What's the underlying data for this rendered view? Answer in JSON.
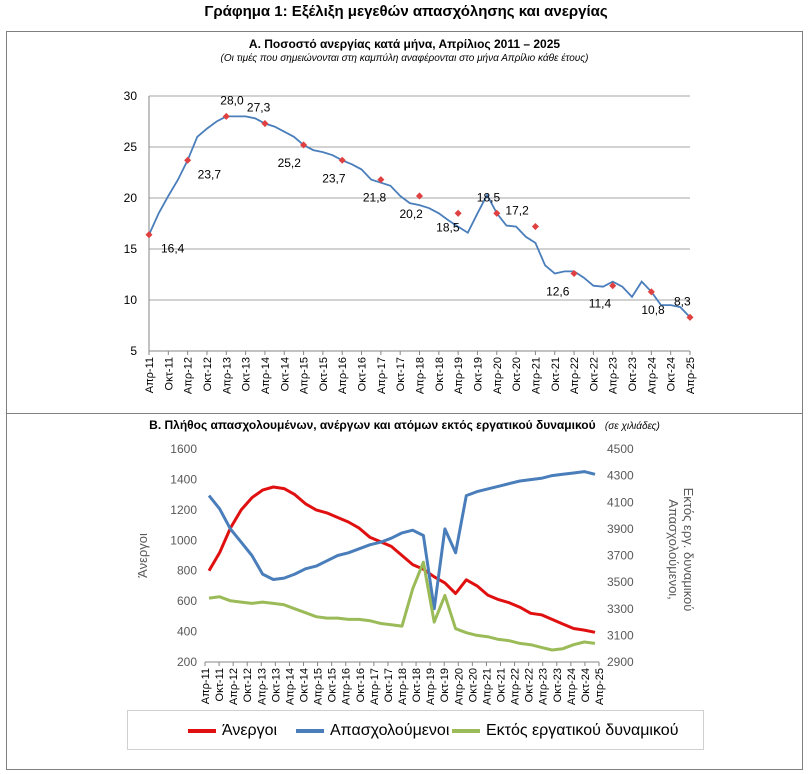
{
  "figure_title": "Γράφημα 1: Εξέλιξη μεγεθών απασχόλησης και ανεργίας",
  "chart_data": [
    {
      "type": "line",
      "title": "Α. Ποσοστό ανεργίας κατά μήνα, Απρίλιος 2011 – 2025",
      "subtitle": "(Οι τιμές που σημειώνονται στη καμπύλη αναφέρονται στο μήνα Απρίλιο κάθε έτους)",
      "xlabel": "",
      "ylabel": "",
      "ylim": [
        5,
        30
      ],
      "yticks": [
        5,
        10,
        15,
        20,
        25,
        30
      ],
      "grid": true,
      "x_labels": [
        "Απρ-11",
        "Οκτ-11",
        "Απρ-12",
        "Οκτ-12",
        "Απρ-13",
        "Οκτ-13",
        "Απρ-14",
        "Οκτ-14",
        "Απρ-15",
        "Οκτ-15",
        "Απρ-16",
        "Οκτ-16",
        "Απρ-17",
        "Οκτ-17",
        "Απρ-18",
        "Οκτ-18",
        "Απρ-19",
        "Οκτ-19",
        "Απρ-20",
        "Οκτ-20",
        "Απρ-21",
        "Οκτ-21",
        "Απρ-22",
        "Οκτ-22",
        "Απρ-23",
        "Οκτ-23",
        "Απρ-24",
        "Οκτ-24",
        "Απρ-25"
      ],
      "series": [
        {
          "color": "#4a7ebb",
          "values": [
            16.4,
            18.5,
            20.2,
            21.8,
            23.7,
            26.0,
            26.8,
            27.5,
            28.0,
            28.0,
            28.0,
            27.8,
            27.3,
            27.0,
            26.5,
            26.0,
            25.2,
            24.7,
            24.5,
            24.2,
            23.7,
            23.3,
            22.8,
            21.8,
            21.5,
            21.2,
            20.2,
            19.5,
            19.3,
            19.0,
            18.5,
            17.8,
            17.2,
            16.6,
            18.5,
            20.3,
            18.5,
            17.3,
            17.2,
            16.2,
            15.6,
            13.4,
            12.6,
            12.8,
            12.8,
            12.2,
            11.4,
            11.3,
            11.8,
            11.3,
            10.3,
            11.8,
            10.8,
            9.5,
            9.5,
            9.3,
            8.3
          ]
        }
      ],
      "april_markers": [
        {
          "label": "Απρ-11",
          "value": 16.4,
          "text": "16,4"
        },
        {
          "label": "Απρ-12",
          "value": 23.7,
          "text": "23,7"
        },
        {
          "label": "Απρ-13",
          "value": 28.0,
          "text": "28,0"
        },
        {
          "label": "Απρ-14",
          "value": 27.3,
          "text": "27,3"
        },
        {
          "label": "Απρ-15",
          "value": 25.2,
          "text": "25,2"
        },
        {
          "label": "Απρ-16",
          "value": 23.7,
          "text": "23,7"
        },
        {
          "label": "Απρ-17",
          "value": 21.8,
          "text": "21,8"
        },
        {
          "label": "Απρ-18",
          "value": 20.2,
          "text": "20,2"
        },
        {
          "label": "Απρ-19",
          "value": 18.5,
          "text": "18,5"
        },
        {
          "label": "Απρ-20",
          "value": 18.5,
          "text": "18,5"
        },
        {
          "label": "Απρ-21",
          "value": 17.2,
          "text": "17,2"
        },
        {
          "label": "Απρ-22",
          "value": 12.6,
          "text": "12,6"
        },
        {
          "label": "Απρ-23",
          "value": 11.4,
          "text": "11,4"
        },
        {
          "label": "Απρ-24",
          "value": 10.8,
          "text": "10,8"
        },
        {
          "label": "Απρ-25",
          "value": 8.3,
          "text": "8,3"
        }
      ],
      "marker_color": "#e04040"
    },
    {
      "type": "line",
      "title": "Β. Πλήθος απασχολουμένων, ανέργων και ατόμων εκτός εργατικού δυναμικού",
      "title_note": "(σε χιλιάδες)",
      "ylabel": "Άνεργοι",
      "ylabel_right": "Απασχολούμενοι, Εκτός εργ. δυναμικού",
      "ylim": [
        200,
        1600
      ],
      "yticks": [
        200,
        400,
        600,
        800,
        1000,
        1200,
        1400,
        1600
      ],
      "ylim_right": [
        2900,
        4500
      ],
      "yticks_right": [
        2900,
        3100,
        3300,
        3500,
        3700,
        3900,
        4100,
        4300,
        4500
      ],
      "legend_position": "bottom",
      "x_labels": [
        "Απρ-11",
        "Οκτ-11",
        "Απρ-12",
        "Οκτ-12",
        "Απρ-13",
        "Οκτ-13",
        "Απρ-14",
        "Οκτ-14",
        "Απρ-15",
        "Οκτ-15",
        "Απρ-16",
        "Οκτ-16",
        "Απρ-17",
        "Οκτ-17",
        "Απρ-18",
        "Οκτ-18",
        "Απρ-19",
        "Οκτ-19",
        "Απρ-20",
        "Οκτ-20",
        "Απρ-21",
        "Οκτ-21",
        "Απρ-22",
        "Οκτ-22",
        "Απρ-23",
        "Οκτ-23",
        "Απρ-24",
        "Οκτ-24",
        "Απρ-25"
      ],
      "series": [
        {
          "name": "Άνεργοι",
          "axis": "left",
          "color": "#e01010",
          "values": [
            800,
            920,
            1080,
            1200,
            1280,
            1330,
            1350,
            1340,
            1300,
            1240,
            1200,
            1180,
            1150,
            1120,
            1080,
            1020,
            990,
            960,
            900,
            840,
            810,
            760,
            720,
            650,
            740,
            700,
            640,
            610,
            590,
            560,
            520,
            510,
            480,
            450,
            420,
            410,
            395
          ]
        },
        {
          "name": "Απασχολούμενοι",
          "axis": "right",
          "color": "#4a7ebb",
          "values": [
            4150,
            4050,
            3900,
            3800,
            3700,
            3560,
            3520,
            3530,
            3560,
            3600,
            3620,
            3660,
            3700,
            3720,
            3750,
            3780,
            3800,
            3830,
            3870,
            3890,
            3850,
            3300,
            3900,
            3720,
            4150,
            4180,
            4200,
            4220,
            4240,
            4260,
            4270,
            4280,
            4300,
            4310,
            4320,
            4330,
            4310
          ]
        },
        {
          "name": "Εκτός εργατικού δυναμικού",
          "axis": "right",
          "color": "#9bbb59",
          "values": [
            3380,
            3390,
            3360,
            3350,
            3340,
            3350,
            3340,
            3330,
            3300,
            3270,
            3240,
            3230,
            3230,
            3220,
            3220,
            3210,
            3190,
            3180,
            3170,
            3450,
            3650,
            3200,
            3400,
            3150,
            3120,
            3100,
            3090,
            3070,
            3060,
            3040,
            3030,
            3010,
            2990,
            3000,
            3030,
            3050,
            3040
          ]
        }
      ]
    }
  ]
}
